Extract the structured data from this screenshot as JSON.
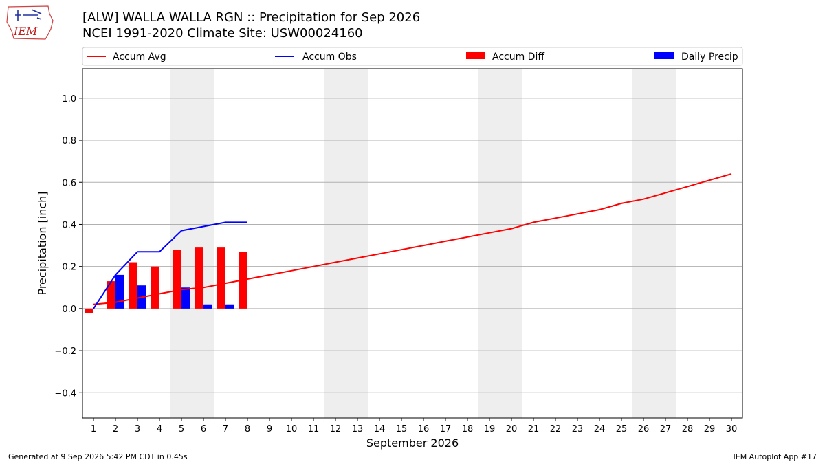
{
  "header": {
    "title_line1": "[ALW] WALLA WALLA RGN :: Precipitation for Sep 2026",
    "title_line2": "NCEI 1991-2020 Climate Site: USW00024160",
    "logo_text": "IEM"
  },
  "footer": {
    "generated": "Generated at 9 Sep 2026 5:42 PM CDT in 0.45s",
    "app": "IEM Autoplot App #17"
  },
  "colors": {
    "avg": "#ff0000",
    "obs": "#0000ff",
    "diff": "#ff0000",
    "daily": "#0000ff",
    "weekend_band": "#eeeeee",
    "grid": "#b0b0b0"
  },
  "chart_data": {
    "type": "bar",
    "xlabel": "September 2026",
    "ylabel": "Precipitation [inch]",
    "ylim": [
      -0.52,
      1.14
    ],
    "xlim": [
      0.5,
      30.5
    ],
    "yticks": [
      -0.4,
      -0.2,
      0.0,
      0.2,
      0.4,
      0.6,
      0.8,
      1.0
    ],
    "ytick_labels": [
      "−0.4",
      "−0.2",
      "0.0",
      "0.2",
      "0.4",
      "0.6",
      "0.8",
      "1.0"
    ],
    "xticks": [
      1,
      2,
      3,
      4,
      5,
      6,
      7,
      8,
      9,
      10,
      11,
      12,
      13,
      14,
      15,
      16,
      17,
      18,
      19,
      20,
      21,
      22,
      23,
      24,
      25,
      26,
      27,
      28,
      29,
      30
    ],
    "xtick_labels": [
      "1",
      "2",
      "3",
      "4",
      "5",
      "6",
      "7",
      "8",
      "9",
      "10",
      "11",
      "12",
      "13",
      "14",
      "15",
      "16",
      "17",
      "18",
      "19",
      "20",
      "21",
      "22",
      "23",
      "24",
      "25",
      "26",
      "27",
      "28",
      "29",
      "30"
    ],
    "grid": true,
    "legend_position": "top, above plot",
    "weekend_bands": [
      [
        5,
        6
      ],
      [
        12,
        13
      ],
      [
        19,
        20
      ],
      [
        26,
        27
      ]
    ],
    "series": [
      {
        "name": "Accum Avg",
        "kind": "line",
        "x": [
          1,
          2,
          3,
          4,
          5,
          6,
          7,
          8,
          9,
          10,
          11,
          12,
          13,
          14,
          15,
          16,
          17,
          18,
          19,
          20,
          21,
          22,
          23,
          24,
          25,
          26,
          27,
          28,
          29,
          30
        ],
        "values": [
          0.02,
          0.03,
          0.05,
          0.07,
          0.09,
          0.1,
          0.12,
          0.14,
          0.16,
          0.18,
          0.2,
          0.22,
          0.24,
          0.26,
          0.28,
          0.3,
          0.32,
          0.34,
          0.36,
          0.38,
          0.41,
          0.43,
          0.45,
          0.47,
          0.5,
          0.52,
          0.55,
          0.58,
          0.61,
          0.64
        ]
      },
      {
        "name": "Accum Obs",
        "kind": "line",
        "x": [
          1,
          2,
          3,
          4,
          5,
          6,
          7,
          8
        ],
        "values": [
          0.0,
          0.16,
          0.27,
          0.27,
          0.37,
          0.39,
          0.41,
          0.41
        ]
      },
      {
        "name": "Accum Diff",
        "kind": "bar",
        "x": [
          1,
          2,
          3,
          4,
          5,
          6,
          7,
          8
        ],
        "values": [
          -0.02,
          0.13,
          0.22,
          0.2,
          0.28,
          0.29,
          0.29,
          0.27
        ]
      },
      {
        "name": "Daily Precip",
        "kind": "bar",
        "x": [
          1,
          2,
          3,
          4,
          5,
          6,
          7,
          8
        ],
        "values": [
          0.0,
          0.16,
          0.11,
          0.0,
          0.1,
          0.02,
          0.02,
          0.0
        ]
      }
    ]
  }
}
